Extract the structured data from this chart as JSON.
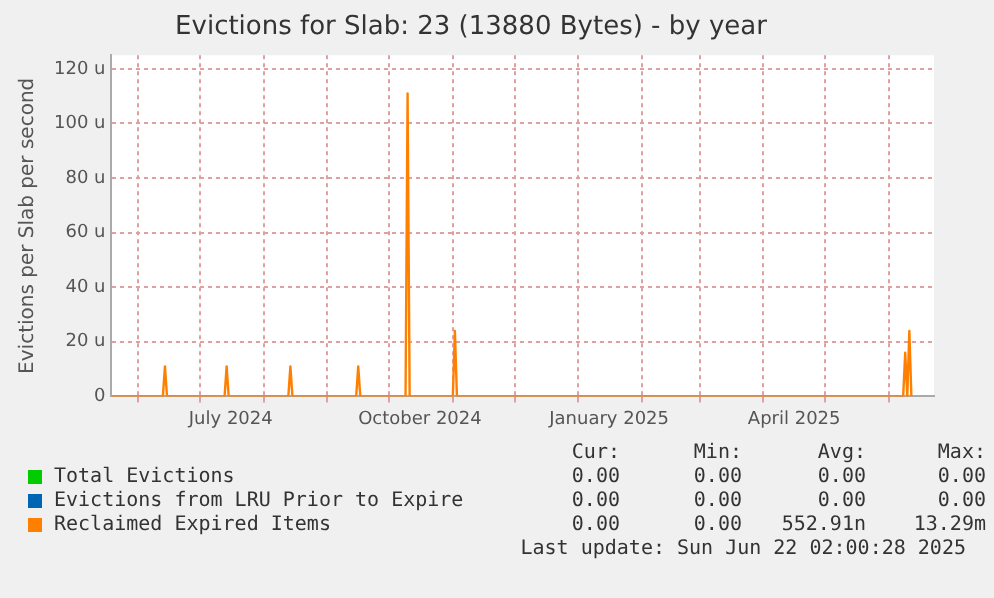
{
  "chart_data": {
    "type": "line",
    "title": "Evictions for Slab: 23 (13880 Bytes) - by year",
    "ylabel": "Evictions per Slab per second",
    "xlim": [
      "2024-05-19",
      "2025-06-23"
    ],
    "xticks": [
      {
        "value": "2024-06-01",
        "label": null
      },
      {
        "value": "2024-07-01",
        "label": null
      },
      {
        "value": "2024-07-16",
        "label": "July 2024"
      },
      {
        "value": "2024-08-01",
        "label": null
      },
      {
        "value": "2024-09-01",
        "label": null
      },
      {
        "value": "2024-10-01",
        "label": null
      },
      {
        "value": "2024-10-16",
        "label": "October 2024"
      },
      {
        "value": "2024-11-01",
        "label": null
      },
      {
        "value": "2024-12-01",
        "label": null
      },
      {
        "value": "2025-01-01",
        "label": null
      },
      {
        "value": "2025-01-16",
        "label": "January 2025"
      },
      {
        "value": "2025-02-01",
        "label": null
      },
      {
        "value": "2025-03-01",
        "label": null
      },
      {
        "value": "2025-04-01",
        "label": null
      },
      {
        "value": "2025-04-16",
        "label": "April 2025"
      },
      {
        "value": "2025-05-01",
        "label": null
      },
      {
        "value": "2025-06-01",
        "label": null
      }
    ],
    "ylim": [
      0,
      125
    ],
    "yticks": [
      {
        "value": 0,
        "label": "0"
      },
      {
        "value": 20,
        "label": "20 u"
      },
      {
        "value": 40,
        "label": "40 u"
      },
      {
        "value": 60,
        "label": "60 u"
      },
      {
        "value": 80,
        "label": "80 u"
      },
      {
        "value": 100,
        "label": "100 u"
      },
      {
        "value": 120,
        "label": "120 u"
      }
    ],
    "grid": true,
    "legend": "bottom",
    "marker": "none",
    "series": [
      {
        "name": "Total Evictions",
        "color": "#00cc00"
      },
      {
        "name": "Evictions from LRU Prior to Expire",
        "color": "#0066b3"
      },
      {
        "name": "Reclaimed Expired Items",
        "color": "#ff8000",
        "x": [
          "2024-05-19",
          "2024-06-13",
          "2024-06-14",
          "2024-06-15",
          "2024-07-13",
          "2024-07-14",
          "2024-07-15",
          "2024-08-13",
          "2024-08-14",
          "2024-08-15",
          "2024-09-15",
          "2024-09-16",
          "2024-09-17",
          "2024-10-09",
          "2024-10-10",
          "2024-10-11",
          "2024-11-01",
          "2024-11-02",
          "2024-11-03",
          "2025-06-08",
          "2025-06-09",
          "2025-06-10",
          "2025-06-11",
          "2025-06-12"
        ],
        "values": [
          0,
          0,
          11,
          0,
          0,
          11,
          0,
          0,
          11,
          0,
          0,
          11,
          0,
          0,
          111,
          0,
          0,
          24,
          0,
          0,
          16,
          0,
          24,
          0
        ]
      }
    ],
    "annotations": [
      "Cur:",
      "Min:",
      "Avg:",
      "Max:",
      "0.00",
      "0.00",
      "0.00",
      "0.00",
      "0.00",
      "0.00",
      "0.00",
      "0.00",
      "0.00",
      "0.00",
      "552.91n",
      "13.29m",
      "Last update: Sun Jun 22 02:00:28 2025"
    ]
  }
}
